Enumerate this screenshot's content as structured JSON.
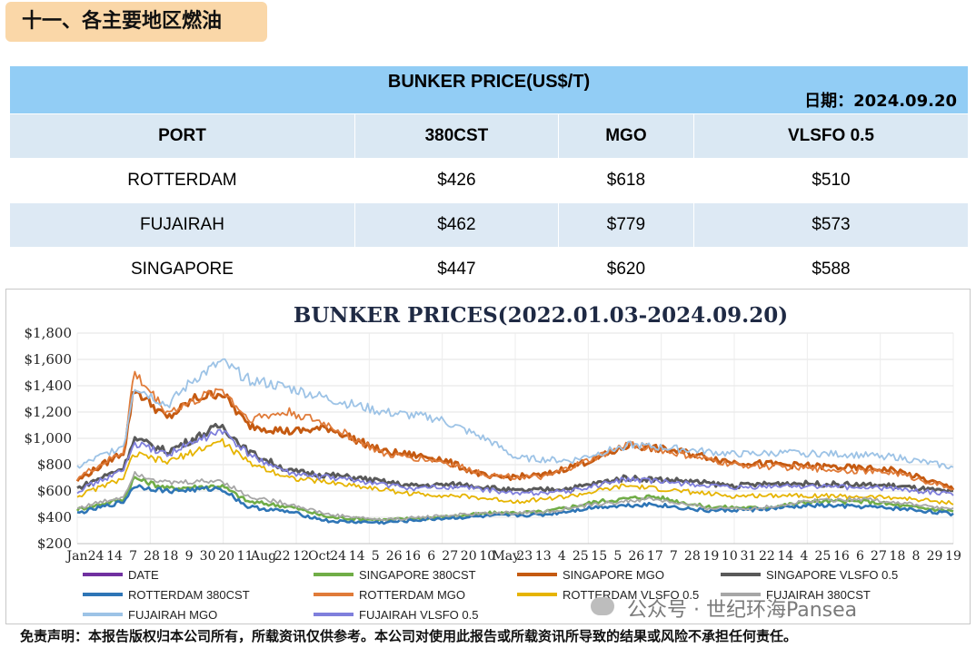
{
  "section_title": "十一、各主要地区燃油",
  "table": {
    "title": "BUNKER PRICE(US$/T)",
    "date_label": "日期：2024.09.20",
    "headers": [
      "PORT",
      "380CST",
      "MGO",
      "VLSFO 0.5"
    ],
    "rows": [
      [
        "ROTTERDAM",
        "$426",
        "$618",
        "$510"
      ],
      [
        "FUJAIRAH",
        "$462",
        "$779",
        "$573"
      ],
      [
        "SINGAPORE",
        "$447",
        "$620",
        "$588"
      ]
    ]
  },
  "chart_data": {
    "type": "line",
    "title": "BUNKER PRICES(2022.01.03-2024.09.20)",
    "xlabel": "",
    "ylabel": "",
    "ylim": [
      200,
      1800
    ],
    "yticks": [
      "$200",
      "$400",
      "$600",
      "$800",
      "$1,000",
      "$1,200",
      "$1,400",
      "$1,600",
      "$1,800"
    ],
    "x_tick_labels": [
      "Jan",
      "24",
      "14",
      "7",
      "28",
      "18",
      "9",
      "30",
      "20",
      "11",
      "Aug",
      "22",
      "12",
      "Oct",
      "24",
      "14",
      "5",
      "26",
      "16",
      "6",
      "27",
      "20",
      "10",
      "May",
      "23",
      "13",
      "4",
      "25",
      "15",
      "5",
      "26",
      "17",
      "7",
      "28",
      "19",
      "10",
      "31",
      "22",
      "14",
      "4",
      "25",
      "16",
      "6",
      "27",
      "18",
      "8",
      "29",
      "19"
    ],
    "x_range": [
      "2022-01-03",
      "2024-09-20"
    ],
    "legend_position": "bottom",
    "grid": true,
    "series": [
      {
        "name": "DATE",
        "color": "#7030a0",
        "values": []
      },
      {
        "name": "SINGAPORE 380CST",
        "color": "#70ad47",
        "keypoints": [
          [
            "2022-01-03",
            460
          ],
          [
            "2022-02-25",
            540
          ],
          [
            "2022-03-08",
            700
          ],
          [
            "2022-04-15",
            620
          ],
          [
            "2022-06-15",
            640
          ],
          [
            "2022-07-15",
            520
          ],
          [
            "2022-09-01",
            480
          ],
          [
            "2022-10-15",
            400
          ],
          [
            "2022-12-15",
            380
          ],
          [
            "2023-02-15",
            400
          ],
          [
            "2023-04-15",
            430
          ],
          [
            "2023-06-15",
            440
          ],
          [
            "2023-08-15",
            520
          ],
          [
            "2023-10-15",
            560
          ],
          [
            "2023-12-15",
            480
          ],
          [
            "2024-02-15",
            470
          ],
          [
            "2024-04-15",
            520
          ],
          [
            "2024-06-15",
            520
          ],
          [
            "2024-08-01",
            480
          ],
          [
            "2024-09-20",
            447
          ]
        ]
      },
      {
        "name": "SINGAPORE MGO",
        "color": "#c55a11",
        "keypoints": [
          [
            "2022-01-03",
            680
          ],
          [
            "2022-02-25",
            900
          ],
          [
            "2022-03-08",
            1380
          ],
          [
            "2022-04-15",
            1150
          ],
          [
            "2022-05-15",
            1300
          ],
          [
            "2022-06-15",
            1350
          ],
          [
            "2022-07-15",
            1100
          ],
          [
            "2022-09-01",
            1050
          ],
          [
            "2022-10-15",
            1080
          ],
          [
            "2022-12-15",
            900
          ],
          [
            "2023-02-15",
            850
          ],
          [
            "2023-04-15",
            700
          ],
          [
            "2023-06-15",
            720
          ],
          [
            "2023-08-15",
            850
          ],
          [
            "2023-09-20",
            950
          ],
          [
            "2023-11-15",
            900
          ],
          [
            "2024-01-15",
            820
          ],
          [
            "2024-03-15",
            800
          ],
          [
            "2024-05-15",
            780
          ],
          [
            "2024-07-15",
            760
          ],
          [
            "2024-09-20",
            620
          ]
        ]
      },
      {
        "name": "SINGAPORE VLSFO 0.5",
        "color": "#595959",
        "keypoints": [
          [
            "2022-01-03",
            620
          ],
          [
            "2022-02-25",
            780
          ],
          [
            "2022-03-08",
            1000
          ],
          [
            "2022-04-15",
            900
          ],
          [
            "2022-06-15",
            1100
          ],
          [
            "2022-07-15",
            900
          ],
          [
            "2022-09-01",
            750
          ],
          [
            "2022-11-15",
            700
          ],
          [
            "2023-01-15",
            640
          ],
          [
            "2023-03-15",
            650
          ],
          [
            "2023-05-15",
            600
          ],
          [
            "2023-07-15",
            620
          ],
          [
            "2023-09-15",
            700
          ],
          [
            "2023-11-15",
            680
          ],
          [
            "2024-01-15",
            640
          ],
          [
            "2024-03-15",
            660
          ],
          [
            "2024-05-15",
            650
          ],
          [
            "2024-07-15",
            640
          ],
          [
            "2024-09-20",
            588
          ]
        ]
      },
      {
        "name": "ROTTERDAM 380CST",
        "color": "#2e75b6",
        "keypoints": [
          [
            "2022-01-03",
            430
          ],
          [
            "2022-02-25",
            520
          ],
          [
            "2022-03-08",
            640
          ],
          [
            "2022-04-15",
            600
          ],
          [
            "2022-06-15",
            620
          ],
          [
            "2022-07-15",
            480
          ],
          [
            "2022-09-01",
            440
          ],
          [
            "2022-10-15",
            370
          ],
          [
            "2022-12-15",
            360
          ],
          [
            "2023-02-15",
            390
          ],
          [
            "2023-04-15",
            410
          ],
          [
            "2023-06-15",
            420
          ],
          [
            "2023-08-15",
            480
          ],
          [
            "2023-10-15",
            500
          ],
          [
            "2023-12-15",
            450
          ],
          [
            "2024-02-15",
            460
          ],
          [
            "2024-04-15",
            490
          ],
          [
            "2024-06-15",
            480
          ],
          [
            "2024-08-01",
            460
          ],
          [
            "2024-09-20",
            426
          ]
        ]
      },
      {
        "name": "ROTTERDAM MGO",
        "color": "#e07b39",
        "keypoints": [
          [
            "2022-01-03",
            700
          ],
          [
            "2022-02-25",
            900
          ],
          [
            "2022-03-08",
            1500
          ],
          [
            "2022-04-15",
            1200
          ],
          [
            "2022-05-15",
            1280
          ],
          [
            "2022-06-15",
            1380
          ],
          [
            "2022-07-15",
            1150
          ],
          [
            "2022-09-01",
            1200
          ],
          [
            "2022-10-15",
            1100
          ],
          [
            "2022-12-15",
            880
          ],
          [
            "2023-02-15",
            830
          ],
          [
            "2023-04-15",
            720
          ],
          [
            "2023-06-15",
            700
          ],
          [
            "2023-08-15",
            860
          ],
          [
            "2023-09-20",
            960
          ],
          [
            "2023-11-15",
            880
          ],
          [
            "2024-01-15",
            800
          ],
          [
            "2024-03-15",
            780
          ],
          [
            "2024-05-15",
            760
          ],
          [
            "2024-07-15",
            740
          ],
          [
            "2024-09-20",
            618
          ]
        ]
      },
      {
        "name": "ROTTERDAM VLSFO 0.5",
        "color": "#e6b400",
        "keypoints": [
          [
            "2022-01-03",
            560
          ],
          [
            "2022-02-25",
            700
          ],
          [
            "2022-03-08",
            880
          ],
          [
            "2022-04-15",
            820
          ],
          [
            "2022-06-15",
            980
          ],
          [
            "2022-07-15",
            820
          ],
          [
            "2022-09-01",
            700
          ],
          [
            "2022-11-15",
            640
          ],
          [
            "2023-01-15",
            580
          ],
          [
            "2023-03-15",
            560
          ],
          [
            "2023-05-15",
            520
          ],
          [
            "2023-07-15",
            560
          ],
          [
            "2023-09-15",
            640
          ],
          [
            "2023-11-15",
            600
          ],
          [
            "2024-01-15",
            560
          ],
          [
            "2024-03-15",
            570
          ],
          [
            "2024-05-15",
            560
          ],
          [
            "2024-07-15",
            550
          ],
          [
            "2024-09-20",
            510
          ]
        ]
      },
      {
        "name": "FUJAIRAH 380CST",
        "color": "#a6a6a6",
        "keypoints": [
          [
            "2022-01-03",
            470
          ],
          [
            "2022-02-25",
            560
          ],
          [
            "2022-03-08",
            740
          ],
          [
            "2022-04-15",
            660
          ],
          [
            "2022-06-15",
            680
          ],
          [
            "2022-07-15",
            560
          ],
          [
            "2022-09-01",
            500
          ],
          [
            "2022-10-15",
            420
          ],
          [
            "2022-12-15",
            380
          ],
          [
            "2023-02-15",
            410
          ],
          [
            "2023-04-15",
            430
          ],
          [
            "2023-06-15",
            440
          ],
          [
            "2023-08-15",
            500
          ],
          [
            "2023-10-15",
            540
          ],
          [
            "2023-12-15",
            470
          ],
          [
            "2024-02-15",
            470
          ],
          [
            "2024-04-15",
            530
          ],
          [
            "2024-06-15",
            540
          ],
          [
            "2024-08-01",
            500
          ],
          [
            "2024-09-20",
            462
          ]
        ]
      },
      {
        "name": "FUJAIRAH MGO",
        "color": "#9dc3e6",
        "keypoints": [
          [
            "2022-01-03",
            780
          ],
          [
            "2022-02-25",
            950
          ],
          [
            "2022-03-08",
            1400
          ],
          [
            "2022-04-15",
            1250
          ],
          [
            "2022-05-15",
            1450
          ],
          [
            "2022-06-15",
            1580
          ],
          [
            "2022-07-15",
            1450
          ],
          [
            "2022-09-01",
            1380
          ],
          [
            "2022-10-15",
            1300
          ],
          [
            "2022-12-15",
            1200
          ],
          [
            "2023-02-15",
            1150
          ],
          [
            "2023-04-15",
            980
          ],
          [
            "2023-05-15",
            850
          ],
          [
            "2023-07-15",
            830
          ],
          [
            "2023-09-20",
            950
          ],
          [
            "2023-11-15",
            920
          ],
          [
            "2024-01-15",
            880
          ],
          [
            "2024-03-15",
            890
          ],
          [
            "2024-05-15",
            880
          ],
          [
            "2024-07-15",
            860
          ],
          [
            "2024-09-20",
            779
          ]
        ]
      },
      {
        "name": "FUJAIRAH VLSFO 0.5",
        "color": "#7f7fdc",
        "keypoints": [
          [
            "2022-01-03",
            600
          ],
          [
            "2022-02-25",
            760
          ],
          [
            "2022-03-08",
            960
          ],
          [
            "2022-04-15",
            880
          ],
          [
            "2022-06-15",
            1060
          ],
          [
            "2022-07-15",
            880
          ],
          [
            "2022-09-01",
            730
          ],
          [
            "2022-11-15",
            680
          ],
          [
            "2023-01-15",
            620
          ],
          [
            "2023-03-15",
            630
          ],
          [
            "2023-05-15",
            580
          ],
          [
            "2023-07-15",
            600
          ],
          [
            "2023-09-15",
            690
          ],
          [
            "2023-11-15",
            660
          ],
          [
            "2024-01-15",
            620
          ],
          [
            "2024-03-15",
            640
          ],
          [
            "2024-05-15",
            630
          ],
          [
            "2024-07-15",
            620
          ],
          [
            "2024-09-20",
            573
          ]
        ]
      }
    ]
  },
  "watermark": "公众号 · 世纪环海Pansea",
  "disclaimer": "免责声明：本报告版权归本公司所有，所载资讯仅供参考。本公司对使用此报告或所载资讯所导致的结果或风险不承担任何责任。",
  "colors": {
    "header_blue": "#92cdf5",
    "row_blue": "#dde9f4",
    "title_orange": "#fad7a8"
  }
}
